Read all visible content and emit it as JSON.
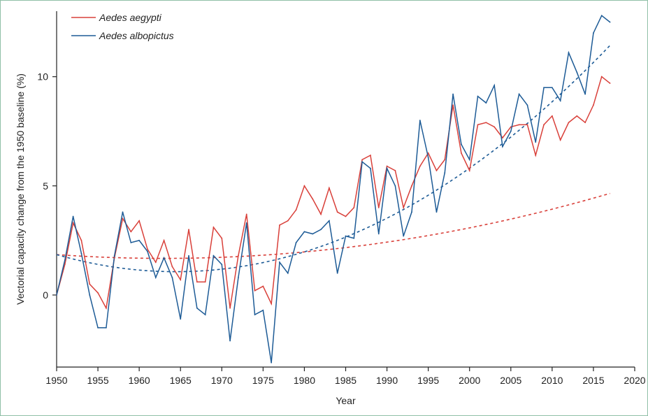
{
  "chart_data": {
    "type": "line",
    "title": "",
    "xlabel": "Year",
    "ylabel": "Vectorial capacity change from the 1950 baseline (%)",
    "xlim": [
      1950,
      2020
    ],
    "ylim": [
      -3.3,
      13.0
    ],
    "xticks": [
      1950,
      1955,
      1960,
      1965,
      1970,
      1975,
      1980,
      1985,
      1990,
      1995,
      2000,
      2005,
      2010,
      2015,
      2020
    ],
    "yticks": [
      0,
      5,
      10
    ],
    "grid": false,
    "legend_position": "top-left",
    "x": [
      1950,
      1951,
      1952,
      1953,
      1954,
      1955,
      1956,
      1957,
      1958,
      1959,
      1960,
      1961,
      1962,
      1963,
      1964,
      1965,
      1966,
      1967,
      1968,
      1969,
      1970,
      1971,
      1972,
      1973,
      1974,
      1975,
      1976,
      1977,
      1978,
      1979,
      1980,
      1981,
      1982,
      1983,
      1984,
      1985,
      1986,
      1987,
      1988,
      1989,
      1990,
      1991,
      1992,
      1993,
      1994,
      1995,
      1996,
      1997,
      1998,
      1999,
      2000,
      2001,
      2002,
      2003,
      2004,
      2005,
      2006,
      2007,
      2008,
      2009,
      2010,
      2011,
      2012,
      2013,
      2014,
      2015,
      2016,
      2017
    ],
    "series": [
      {
        "name": "Aedes aegypti",
        "color": "#d9403a",
        "values": [
          0.0,
          1.4,
          3.3,
          2.5,
          0.5,
          0.1,
          -0.6,
          1.7,
          3.5,
          2.9,
          3.4,
          2.1,
          1.5,
          2.5,
          1.3,
          0.7,
          3.0,
          0.6,
          0.6,
          3.1,
          2.6,
          -0.6,
          1.8,
          3.7,
          0.2,
          0.4,
          -0.4,
          3.2,
          3.4,
          3.9,
          5.0,
          4.4,
          3.7,
          4.9,
          3.8,
          3.6,
          4.0,
          6.2,
          6.4,
          4.0,
          5.9,
          5.7,
          4.0,
          5.0,
          5.9,
          6.5,
          5.7,
          6.2,
          8.7,
          6.5,
          5.7,
          7.8,
          7.9,
          7.7,
          7.2,
          7.7,
          7.8,
          7.8,
          6.4,
          7.8,
          8.2,
          7.1,
          7.9,
          8.2,
          7.9,
          8.7,
          10.0,
          9.7
        ],
        "trend": {
          "a": 1.85,
          "b": -0.0265,
          "c": 0.00102,
          "x0": 1950
        }
      },
      {
        "name": "Aedes albopictus",
        "color": "#1d5b96",
        "values": [
          0.0,
          1.6,
          3.6,
          1.9,
          0.0,
          -1.5,
          -1.5,
          1.8,
          3.8,
          2.4,
          2.5,
          2.0,
          0.8,
          1.7,
          0.8,
          -1.1,
          1.8,
          -0.6,
          -0.9,
          1.8,
          1.4,
          -2.1,
          0.8,
          3.3,
          -0.9,
          -0.7,
          -3.1,
          1.5,
          1.0,
          2.4,
          2.9,
          2.8,
          3.0,
          3.4,
          1.0,
          2.7,
          2.6,
          6.1,
          5.8,
          2.8,
          5.8,
          5.0,
          2.7,
          3.8,
          8.0,
          6.3,
          3.8,
          5.6,
          9.2,
          6.9,
          6.2,
          9.1,
          8.8,
          9.6,
          6.8,
          7.5,
          9.2,
          8.7,
          7.0,
          9.5,
          9.5,
          8.9,
          11.1,
          10.2,
          9.2,
          12.0,
          12.8,
          12.5
        ],
        "trend": {
          "a": 1.85,
          "b": -0.1083,
          "c": 0.00375,
          "x0": 1950
        }
      }
    ]
  }
}
